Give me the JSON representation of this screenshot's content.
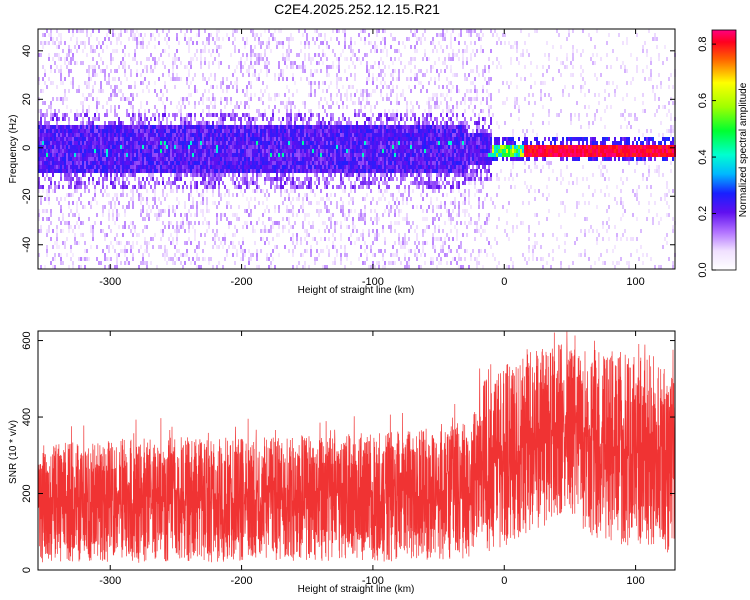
{
  "title": "C2E4.2025.252.12.15.R21",
  "chart_data": [
    {
      "type": "heatmap",
      "xlabel": "Height of straight line (km)",
      "ylabel": "Frequency (Hz)",
      "xlim": [
        -355,
        130
      ],
      "ylim": [
        -50,
        49
      ],
      "x_ticks": [
        -300,
        -200,
        -100,
        0,
        100
      ],
      "y_ticks": [
        -40,
        -20,
        0,
        20,
        40
      ],
      "colorbar": {
        "label": "Normalized spectral amplitude",
        "range": [
          0.0,
          0.85
        ],
        "ticks": [
          0.0,
          0.2,
          0.4,
          0.6,
          0.8
        ]
      },
      "description_values": {
        "band_center_hz": 0,
        "band_halfwidth_hz_below_-20km": 10,
        "band_halfwidth_hz_above_0km": 3,
        "peak_amplitude_above_15km": 0.85,
        "typical_amplitude_below_-20km": 0.1
      }
    },
    {
      "type": "line",
      "xlabel": "Height of straight line (km)",
      "ylabel": "SNR (10 * v/v)",
      "xlim": [
        -355,
        130
      ],
      "ylim": [
        0,
        625
      ],
      "x_ticks": [
        -300,
        -200,
        -100,
        0,
        100
      ],
      "y_ticks": [
        0,
        200,
        400,
        600
      ],
      "series": [
        {
          "name": "SNR",
          "color": "#f03333",
          "envelope_x": [
            -355,
            -300,
            -250,
            -200,
            -150,
            -100,
            -50,
            -25,
            -20,
            -15,
            0,
            20,
            45,
            70,
            100,
            130
          ],
          "envelope_low": [
            20,
            15,
            20,
            20,
            25,
            20,
            25,
            30,
            60,
            40,
            60,
            90,
            150,
            80,
            60,
            40
          ],
          "envelope_high": [
            330,
            340,
            350,
            345,
            350,
            360,
            380,
            390,
            470,
            500,
            540,
            570,
            600,
            580,
            560,
            530
          ]
        }
      ]
    }
  ]
}
